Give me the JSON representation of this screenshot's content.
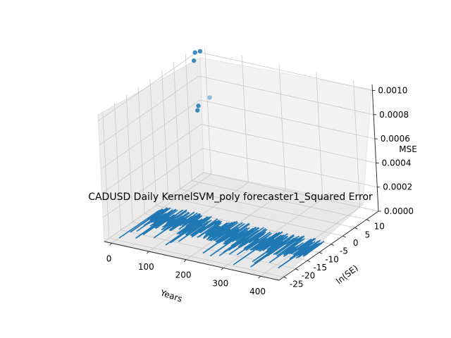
{
  "chart_data": {
    "type": "scatter",
    "title": "CADUSD Daily KernelSVM_poly forecaster1_Squared Error",
    "xlabel": "Years",
    "ylabel": "ln(SE)",
    "zlabel": "MSE",
    "x_ticks": [
      "0",
      "100",
      "200",
      "300",
      "400"
    ],
    "y_ticks": [
      "-25",
      "-20",
      "-15",
      "-10",
      "-5",
      "0",
      "5",
      "10"
    ],
    "z_ticks": [
      "0.0000",
      "0.0002",
      "0.0004",
      "0.0006",
      "0.0008",
      "0.0010"
    ],
    "xlim": [
      -20,
      450
    ],
    "ylim": [
      -27,
      15
    ],
    "zlim": [
      0,
      0.00105
    ],
    "grid": true,
    "series": [
      {
        "type": "scatter",
        "color": "#1f77b4",
        "note_points_xyz": [
          [
            2,
            10,
            0.00101
          ],
          [
            6,
            10,
            0.00108
          ],
          [
            20,
            10,
            0.0011
          ],
          [
            8,
            10,
            0.00064
          ],
          [
            5,
            10,
            0.0006
          ],
          [
            40,
            10,
            0.00073
          ]
        ]
      },
      {
        "type": "line",
        "color": "#1f77b4",
        "trace": {
          "x_range": [
            0,
            430
          ],
          "y_center": -10,
          "y_spread": 6,
          "z": 0
        }
      }
    ]
  }
}
